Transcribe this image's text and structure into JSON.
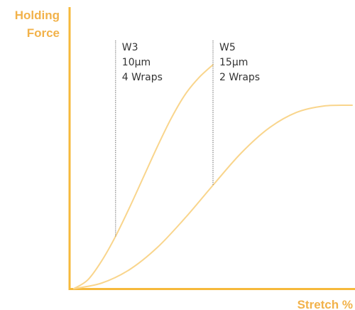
{
  "chart_data": {
    "type": "line",
    "title": "",
    "ylabel_lines": [
      "Holding",
      "Force"
    ],
    "xlabel": "Stretch %",
    "colors": {
      "axis": "#F6B93B",
      "label": "#F2B24A",
      "curve": "#F9D58C",
      "marker": "#555555"
    },
    "grid": false,
    "legend": "none",
    "series": [
      {
        "x": [
          0,
          10,
          20,
          30,
          40,
          50,
          60,
          70,
          80,
          90,
          100
        ],
        "y": [
          0,
          3.9,
          12.4,
          23.4,
          36.2,
          49.8,
          63.4,
          76.1,
          86.7,
          94.3,
          100
        ]
      },
      {
        "x": [
          0,
          20,
          40,
          60,
          80,
          100,
          120,
          140,
          160,
          180,
          200
        ],
        "y": [
          0,
          2.5,
          8.5,
          18.4,
          31.6,
          46.2,
          60.4,
          71.6,
          78.7,
          81.6,
          81.9
        ]
      }
    ],
    "annotations": [
      {
        "lines": [
          "W3",
          "10μm",
          "4 Wraps"
        ],
        "series": 0,
        "x": 30
      },
      {
        "lines": [
          "W5",
          "15μm",
          "2 Wraps"
        ],
        "series": 1,
        "x": 100
      }
    ]
  }
}
